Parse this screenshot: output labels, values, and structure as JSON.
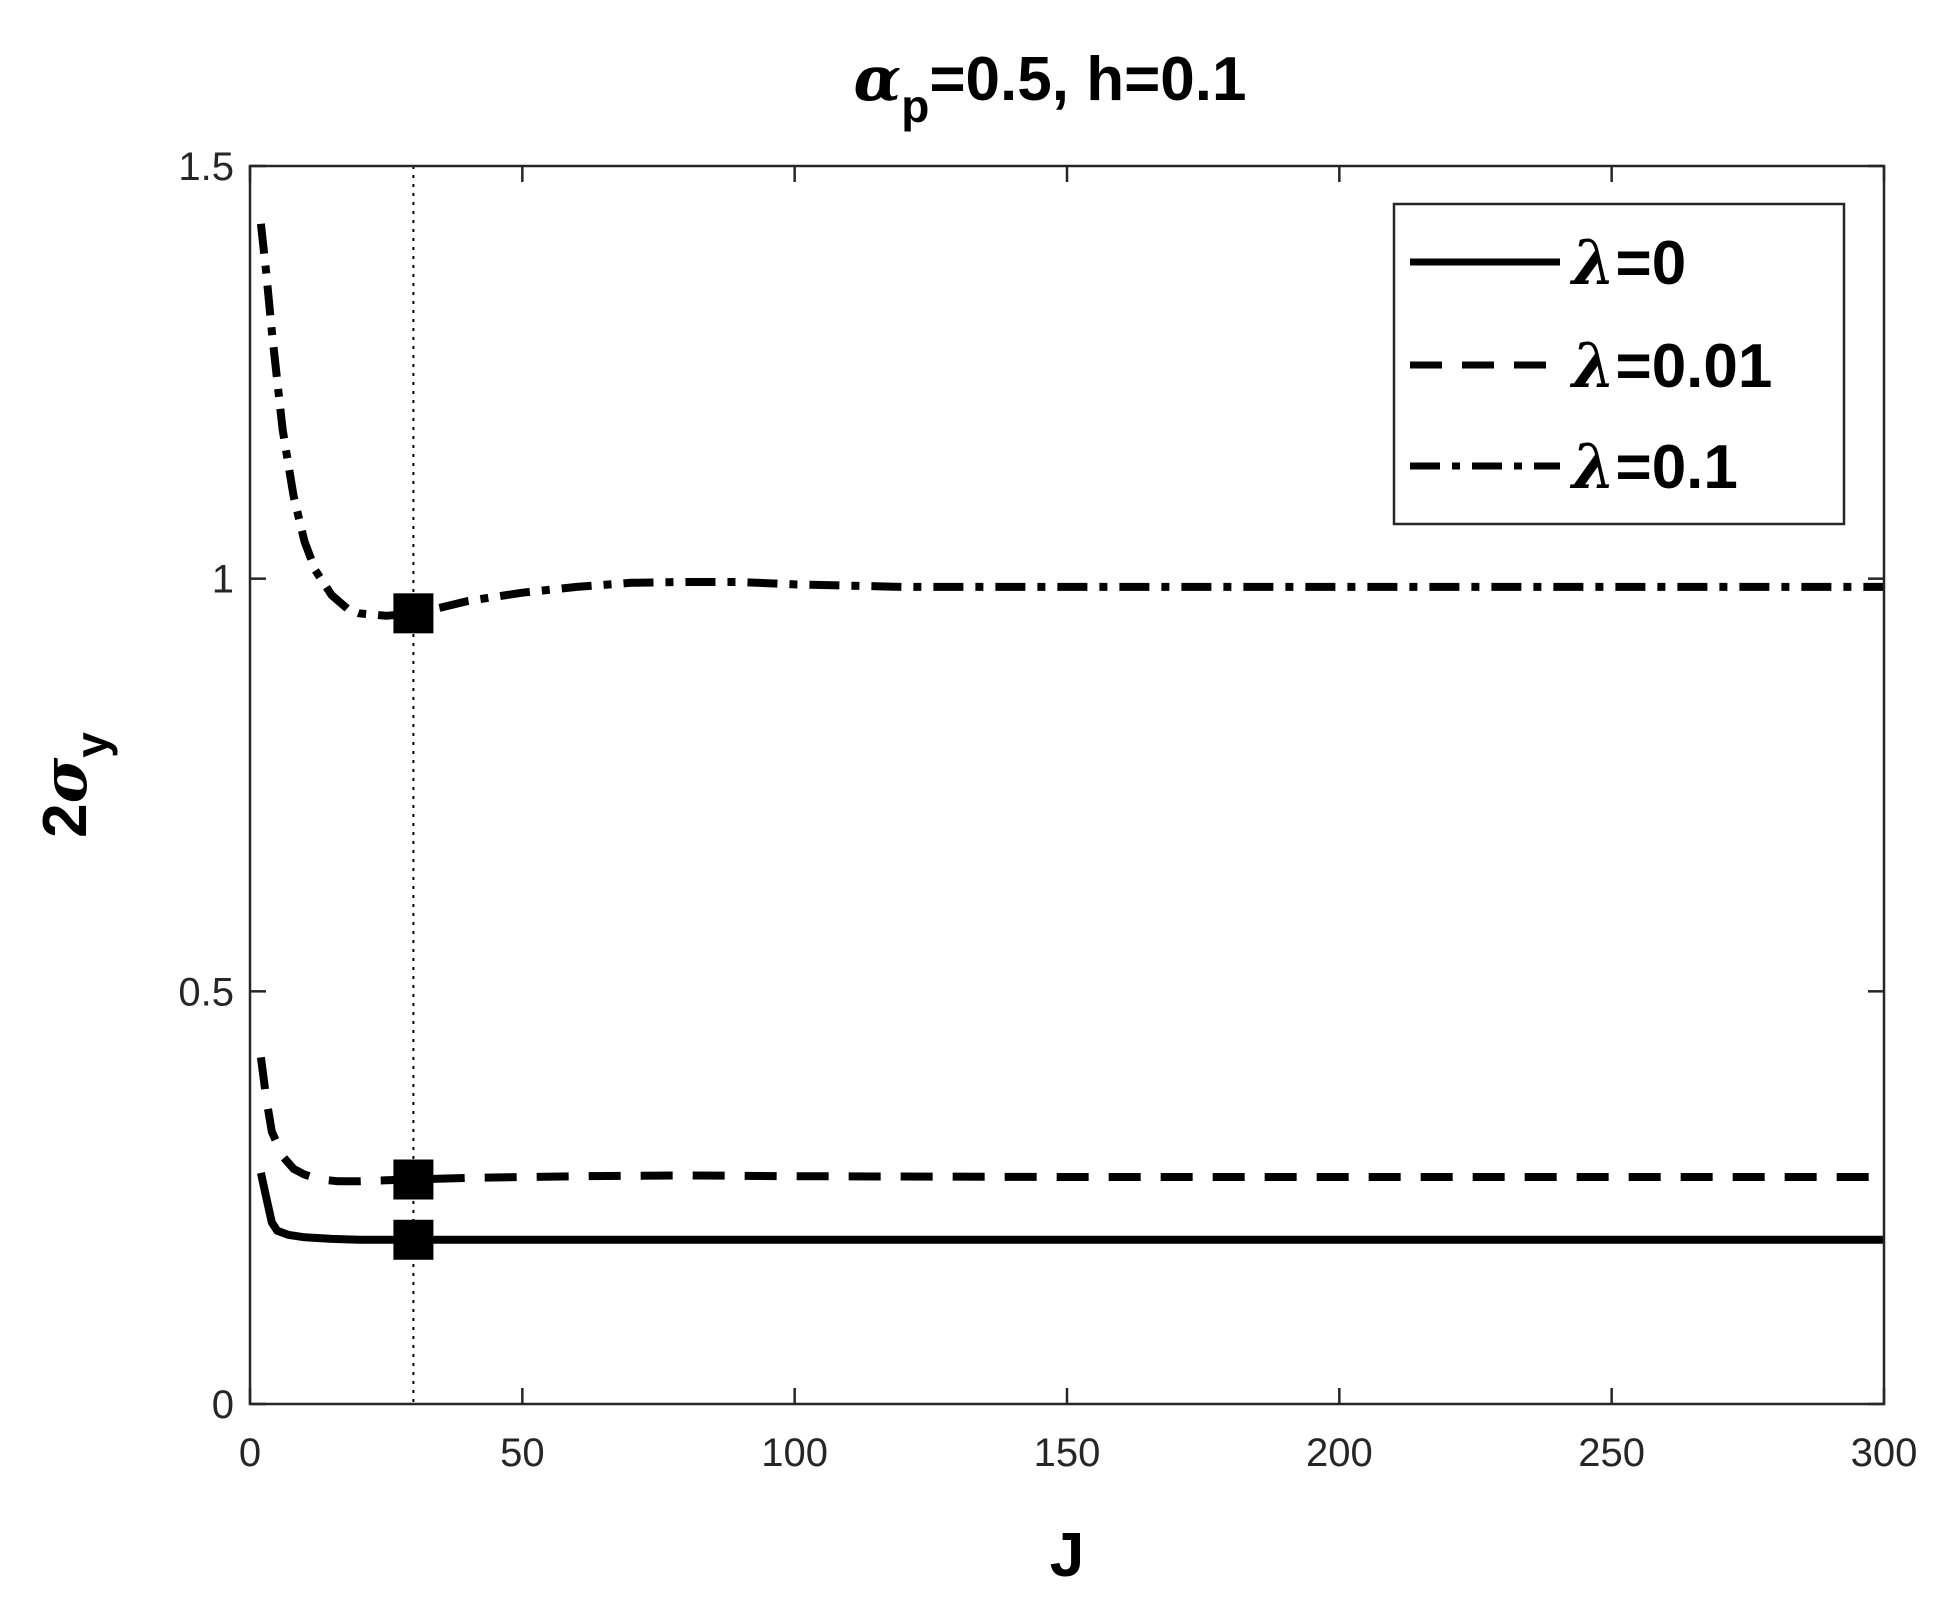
{
  "chart_data": {
    "type": "line",
    "title": {
      "greek": "α",
      "subscript": "p",
      "rest": "=0.5, h=0.1"
    },
    "xlabel": "J",
    "ylabel": {
      "prefix": "2",
      "greek": "σ",
      "subscript": "y"
    },
    "xlim": [
      0,
      300
    ],
    "ylim": [
      0,
      1.5
    ],
    "xticks": [
      0,
      50,
      100,
      150,
      200,
      250,
      300
    ],
    "xtick_labels": [
      "0",
      "50",
      "100",
      "150",
      "200",
      "250",
      "300"
    ],
    "yticks": [
      0,
      0.5,
      1,
      1.5
    ],
    "ytick_labels": [
      "0",
      "0.5",
      "1",
      "1.5"
    ],
    "grid": false,
    "legend_position": "top-right",
    "vertical_reference_line": {
      "x": 30,
      "style": "dotted"
    },
    "series": [
      {
        "name": "λ=0",
        "legend_greek": "λ",
        "legend_rest": "=0",
        "line_style": "solid",
        "color": "#000000",
        "x": [
          2,
          3,
          4,
          5,
          7,
          10,
          15,
          20,
          25,
          30,
          40,
          60,
          100,
          150,
          200,
          250,
          300
        ],
        "y": [
          0.28,
          0.25,
          0.22,
          0.21,
          0.205,
          0.202,
          0.2,
          0.199,
          0.199,
          0.199,
          0.199,
          0.199,
          0.199,
          0.199,
          0.199,
          0.199,
          0.199
        ],
        "marker": {
          "x": 30,
          "y": 0.199,
          "shape": "square"
        }
      },
      {
        "name": "λ=0.01",
        "legend_greek": "λ",
        "legend_rest": "=0.01",
        "line_style": "dashed",
        "color": "#000000",
        "x": [
          2,
          3,
          4,
          6,
          8,
          10,
          13,
          16,
          20,
          25,
          30,
          40,
          60,
          80,
          100,
          150,
          200,
          250,
          300
        ],
        "y": [
          0.42,
          0.37,
          0.33,
          0.3,
          0.285,
          0.278,
          0.272,
          0.27,
          0.27,
          0.271,
          0.272,
          0.274,
          0.276,
          0.277,
          0.276,
          0.275,
          0.275,
          0.275,
          0.275
        ],
        "marker": {
          "x": 30,
          "y": 0.272,
          "shape": "square"
        }
      },
      {
        "name": "λ=0.1",
        "legend_greek": "λ",
        "legend_rest": "=0.1",
        "line_style": "dash-dot",
        "color": "#000000",
        "x": [
          2,
          3,
          4,
          5,
          6,
          8,
          10,
          12,
          15,
          18,
          20,
          25,
          30,
          35,
          40,
          50,
          60,
          70,
          80,
          90,
          100,
          120,
          150,
          200,
          250,
          300
        ],
        "y": [
          1.43,
          1.37,
          1.3,
          1.24,
          1.18,
          1.1,
          1.045,
          1.01,
          0.98,
          0.963,
          0.958,
          0.955,
          0.958,
          0.965,
          0.973,
          0.983,
          0.99,
          0.995,
          0.996,
          0.996,
          0.993,
          0.99,
          0.99,
          0.99,
          0.99,
          0.99
        ],
        "marker": {
          "x": 30,
          "y": 0.958,
          "shape": "square"
        }
      }
    ]
  }
}
